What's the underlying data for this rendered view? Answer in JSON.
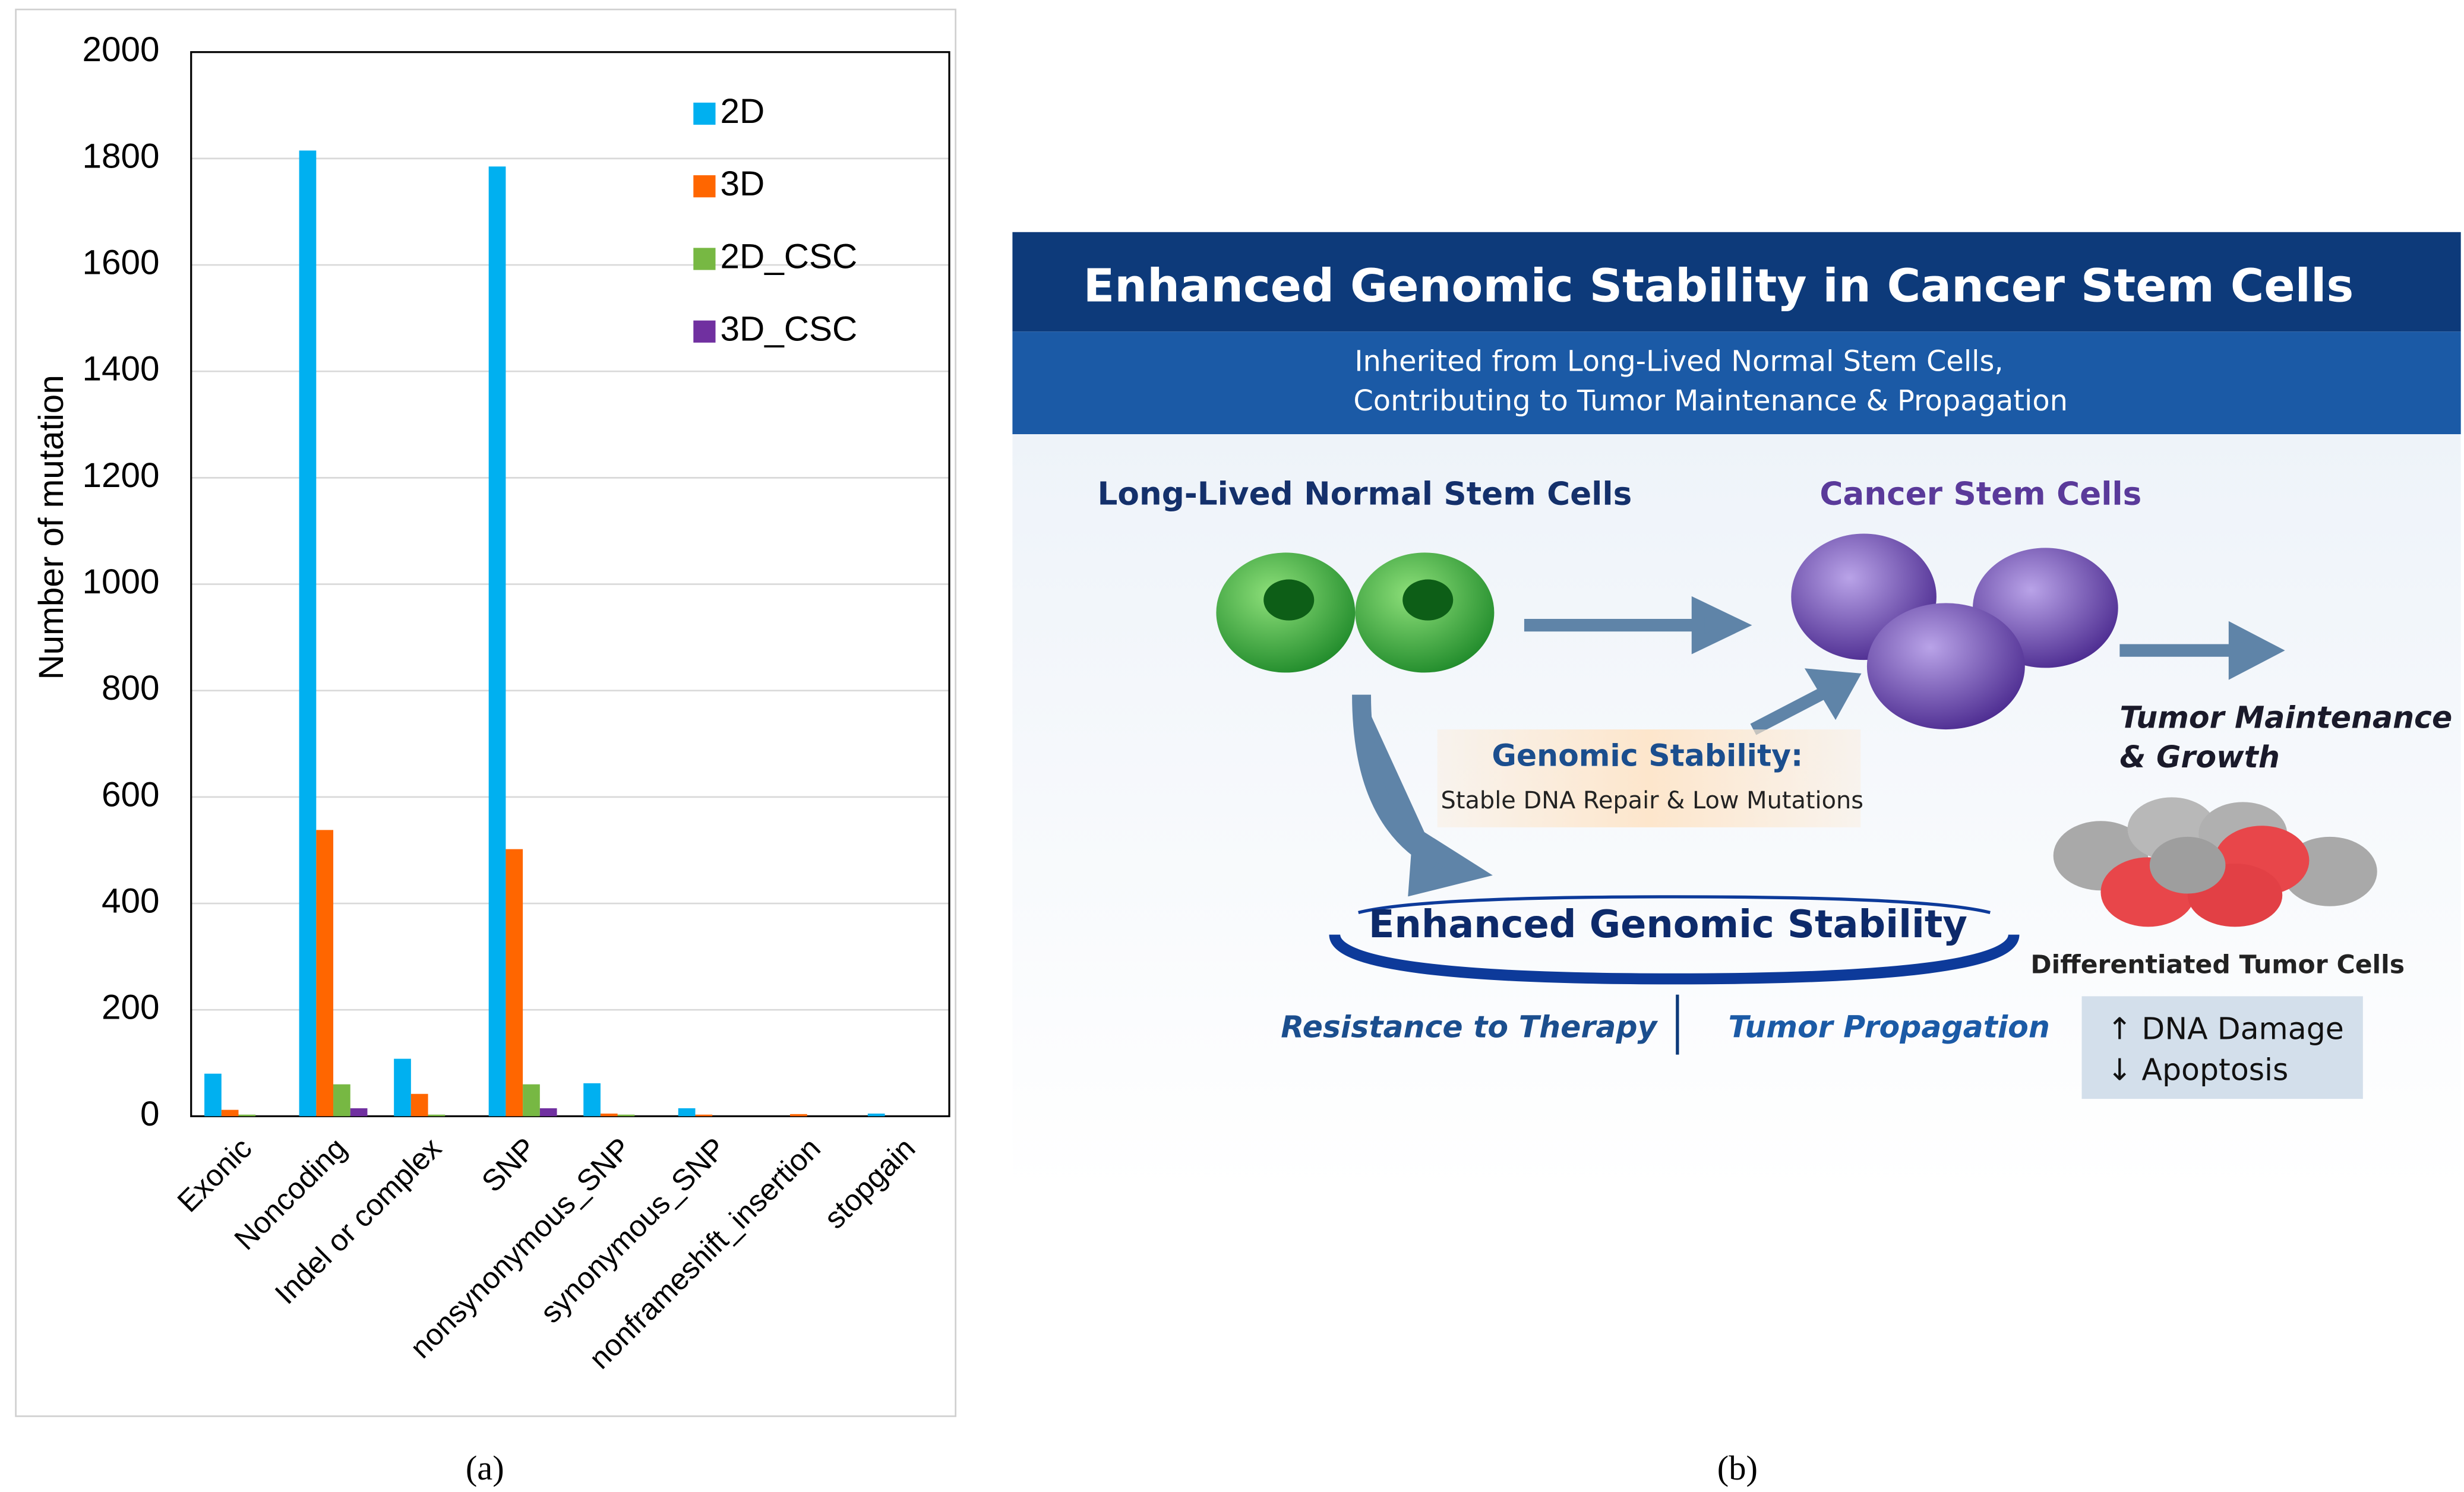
{
  "chart_data": {
    "type": "bar",
    "y_label": "Number of mutation",
    "categories": [
      "Exonic",
      "Noncoding",
      "Indel or complex",
      "SNP",
      "nonsynonymous_SNP",
      "synonymous_SNP",
      "nonframeshift_insertion",
      "stopgain"
    ],
    "series": [
      {
        "name": "2D",
        "color": "#00b0f0",
        "values": [
          80,
          1815,
          108,
          1785,
          62,
          15,
          0,
          5
        ]
      },
      {
        "name": "3D",
        "color": "#ff6600",
        "values": [
          12,
          538,
          42,
          502,
          5,
          3,
          4,
          0
        ]
      },
      {
        "name": "2D_CSC",
        "color": "#77b843",
        "values": [
          3,
          60,
          3,
          60,
          3,
          0,
          0,
          0
        ]
      },
      {
        "name": "3D_CSC",
        "color": "#7030a0",
        "values": [
          0,
          15,
          0,
          15,
          0,
          0,
          0,
          0
        ]
      }
    ],
    "ylim": [
      0,
      2000
    ],
    "yticks": [
      0,
      200,
      400,
      600,
      800,
      1000,
      1200,
      1400,
      1600,
      1800,
      2000
    ],
    "grid": true,
    "legend": "top-right",
    "panel_label": "(a)"
  },
  "figure_b": {
    "panel_label": "(b)",
    "title": "Enhanced Genomic Stability in Cancer Stem Cells",
    "subtitle": [
      "Inherited from Long-Lived Normal Stem Cells,",
      "Contributing to Tumor Maintenance & Propagation"
    ],
    "left_label": "Long-Lived Normal Stem Cells",
    "right_label": "Cancer Stem Cells",
    "box_title": "Genomic Stability:",
    "box_text": "Stable DNA Repair & Low Mutations",
    "center_label": "Enhanced Genomic Stability",
    "left_outcome": "Resistance to Therapy",
    "right_outcome": "Tumor Propagation",
    "maintenance": [
      "Tumor Maintenance",
      "& Growth"
    ],
    "differentiated": "Differentiated Tumor Cells",
    "effects": [
      "↑ DNA Damage",
      "↓ Apoptosis"
    ]
  }
}
